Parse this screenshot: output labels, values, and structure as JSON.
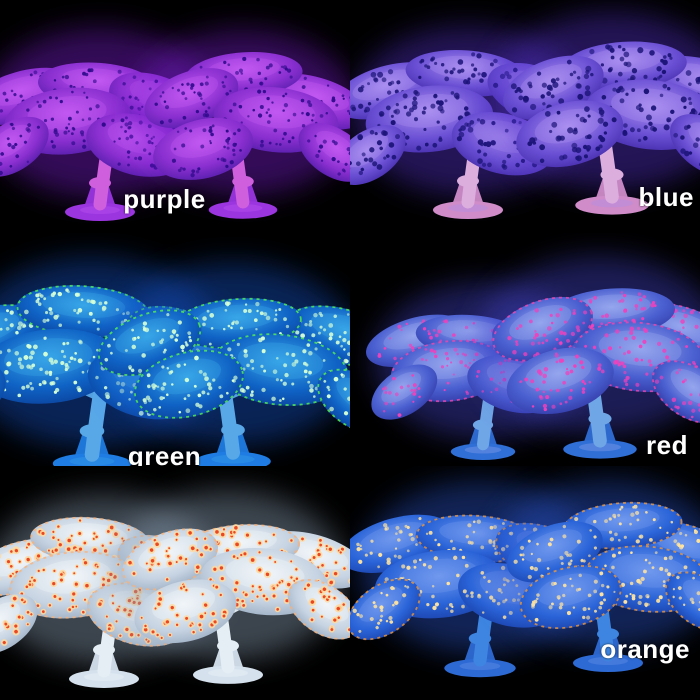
{
  "collage": {
    "background_color": "#000000",
    "label_color": "#ffffff",
    "tiles": [
      {
        "id": "purple",
        "label": "purple",
        "palette": {
          "cap": "#8a2fd0",
          "cap_light": "#c258f2",
          "cap_dark": "#43189e",
          "dot": "#320c8e",
          "stem": "#cf5fdc",
          "base": "#9a35e0",
          "glow": "#7a1fd0",
          "rim": "",
          "dot_core": ""
        }
      },
      {
        "id": "blue",
        "label": "blue",
        "palette": {
          "cap": "#6a4fd4",
          "cap_light": "#ab90f0",
          "cap_dark": "#3a23a0",
          "dot": "#1c1478",
          "stem": "#dcaede",
          "base": "#cf8cc8",
          "glow": "#5533cc",
          "rim": "",
          "dot_core": ""
        }
      },
      {
        "id": "green",
        "label": "green",
        "palette": {
          "cap": "#0f62c4",
          "cap_light": "#38a6e8",
          "cap_dark": "#0a3a92",
          "dot": "#d6ffd6",
          "stem": "#58a8e8",
          "base": "#1f7ce2",
          "glow": "#1455cc",
          "rim": "#5eff46",
          "dot_core": ""
        }
      },
      {
        "id": "red",
        "label": "red",
        "palette": {
          "cap": "#4a5fd0",
          "cap_light": "#96a5ee",
          "cap_dark": "#2a2f9a",
          "dot": "#f041bc",
          "stem": "#6fa6e6",
          "base": "#2f6fd6",
          "glow": "#4444cc",
          "rim": "#ff44aa",
          "dot_core": ""
        }
      },
      {
        "id": "white",
        "label": "",
        "palette": {
          "cap": "#c6d3e2",
          "cap_light": "#f2f5f9",
          "cap_dark": "#92a5bc",
          "dot": "#ffd9a0",
          "stem": "#e6eef5",
          "base": "#d5e2ee",
          "glow": "#90a4ba",
          "rim": "#ffb070",
          "dot_core": "#e8401a"
        }
      },
      {
        "id": "orange",
        "label": "orange",
        "palette": {
          "cap": "#2a64d8",
          "cap_light": "#7199ee",
          "cap_dark": "#16389e",
          "dot": "#ffe3a0",
          "stem": "#3d85e0",
          "base": "#2e6ad4",
          "glow": "#2a55cc",
          "rim": "#ff9c2e",
          "dot_core": ""
        }
      }
    ]
  }
}
